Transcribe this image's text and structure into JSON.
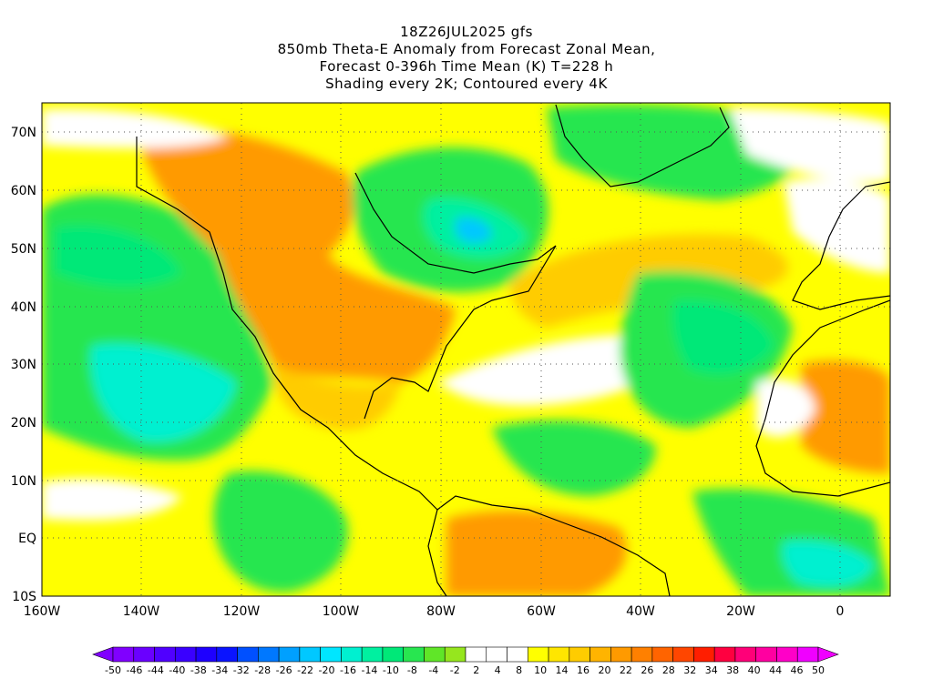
{
  "title": {
    "lines": [
      "18Z26JUL2025 gfs",
      "850mb Theta-E Anomaly from Forecast Zonal Mean,",
      "Forecast 0-396h Time Mean (K) T=228 h",
      "Shading every 2K; Contoured every 4K"
    ]
  },
  "map": {
    "lat_labels": [
      "70N",
      "60N",
      "50N",
      "40N",
      "30N",
      "20N",
      "10N",
      "EQ",
      "10S"
    ],
    "lon_labels": [
      "160W",
      "140W",
      "120W",
      "100W",
      "80W",
      "60W",
      "40W",
      "20W",
      "0"
    ],
    "lat_values": [
      70,
      60,
      50,
      40,
      30,
      20,
      10,
      0,
      -10
    ],
    "lon_values": [
      -160,
      -140,
      -120,
      -100,
      -80,
      -60,
      -40,
      -20,
      0
    ],
    "extent": {
      "lon_min": -160,
      "lon_max": 10,
      "lat_min": -10,
      "lat_max": 75
    }
  },
  "colorbar": {
    "labels": [
      "-50",
      "-46",
      "-44",
      "-40",
      "-38",
      "-34",
      "-32",
      "-28",
      "-26",
      "-22",
      "-20",
      "-16",
      "-14",
      "-10",
      "-8",
      "-4",
      "-2",
      "2",
      "4",
      "8",
      "10",
      "14",
      "16",
      "20",
      "22",
      "26",
      "28",
      "32",
      "34",
      "38",
      "40",
      "44",
      "46",
      "50"
    ],
    "colors": [
      "#8000ff",
      "#6a00ff",
      "#5000ff",
      "#3a00ff",
      "#1e00ff",
      "#0a14ff",
      "#0050ff",
      "#0078ff",
      "#00a0ff",
      "#00c8ff",
      "#00e6ff",
      "#00f0d0",
      "#00f0a0",
      "#00e878",
      "#28e650",
      "#60e628",
      "#96e61e",
      "#ffffff",
      "#ffffff",
      "#ffffff",
      "#ffff00",
      "#ffe600",
      "#ffcc00",
      "#ffb400",
      "#ff9a00",
      "#ff8000",
      "#ff6400",
      "#ff4600",
      "#ff1e00",
      "#ff0040",
      "#ff0078",
      "#ff00a0",
      "#ff00c8",
      "#f000ff"
    ]
  }
}
